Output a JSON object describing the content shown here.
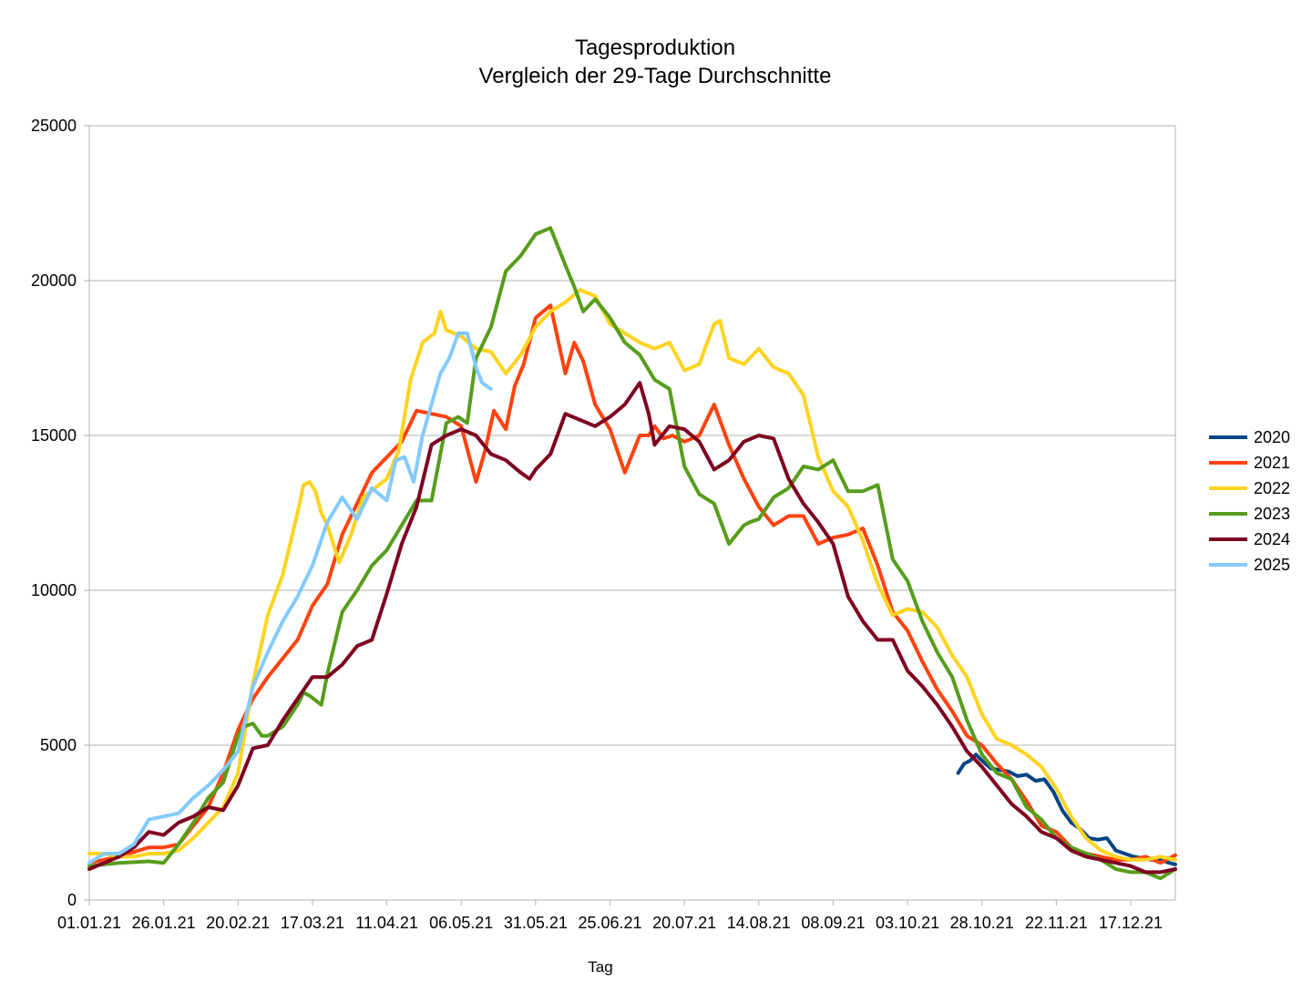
{
  "chart_data": {
    "type": "line",
    "title": "Tagesproduktion",
    "subtitle": "Vergleich der 29-Tage Durchschnitte",
    "xlabel": "Tag",
    "ylabel": "",
    "x_range_days": [
      0,
      365
    ],
    "ylim": [
      0,
      25000
    ],
    "yticks": [
      0,
      5000,
      10000,
      15000,
      20000,
      25000
    ],
    "xtick_labels": [
      "01.01.21",
      "26.01.21",
      "20.02.21",
      "17.03.21",
      "11.04.21",
      "06.05.21",
      "31.05.21",
      "25.06.21",
      "20.07.21",
      "14.08.21",
      "08.09.21",
      "03.10.21",
      "28.10.21",
      "22.11.21",
      "17.12.21"
    ],
    "xtick_days": [
      0,
      25,
      50,
      75,
      100,
      125,
      150,
      175,
      200,
      225,
      250,
      275,
      300,
      325,
      350
    ],
    "grid": "horizontal",
    "legend_position": "right",
    "series": [
      {
        "name": "2020",
        "color": "#004586",
        "x": [
          292,
          294,
          296,
          298,
          300,
          303,
          306,
          309,
          312,
          315,
          318,
          321,
          324,
          327,
          330,
          333,
          336,
          339,
          342,
          345,
          348,
          351,
          354,
          357,
          360,
          363,
          365
        ],
        "y": [
          4100,
          4400,
          4500,
          4700,
          4500,
          4250,
          4200,
          4150,
          4000,
          4050,
          3850,
          3900,
          3500,
          2900,
          2500,
          2300,
          2000,
          1950,
          2000,
          1600,
          1500,
          1400,
          1350,
          1300,
          1300,
          1200,
          1150
        ]
      },
      {
        "name": "2021",
        "color": "#ff420e",
        "x": [
          0,
          10,
          20,
          25,
          30,
          35,
          40,
          45,
          50,
          55,
          60,
          65,
          70,
          75,
          80,
          85,
          90,
          95,
          100,
          105,
          110,
          115,
          120,
          125,
          130,
          133,
          136,
          140,
          143,
          146,
          150,
          155,
          160,
          163,
          166,
          170,
          175,
          180,
          185,
          188,
          190,
          193,
          196,
          200,
          205,
          210,
          215,
          220,
          225,
          230,
          235,
          240,
          245,
          250,
          255,
          260,
          265,
          270,
          275,
          280,
          285,
          290,
          295,
          300,
          305,
          310,
          315,
          320,
          325,
          330,
          335,
          340,
          345,
          350,
          355,
          360,
          365
        ],
        "y": [
          1200,
          1400,
          1700,
          1700,
          1800,
          2400,
          3000,
          4100,
          5500,
          6500,
          7200,
          7800,
          8400,
          9500,
          10200,
          11800,
          12800,
          13800,
          14300,
          14800,
          15800,
          15700,
          15600,
          15300,
          13500,
          14500,
          15800,
          15200,
          16600,
          17300,
          18800,
          19200,
          17000,
          18000,
          17400,
          16000,
          15200,
          13800,
          15000,
          15000,
          15300,
          14900,
          15000,
          14800,
          15000,
          16000,
          14700,
          13600,
          12700,
          12100,
          12400,
          12400,
          11500,
          11700,
          11800,
          12000,
          10800,
          9300,
          8700,
          7700,
          6800,
          6100,
          5300,
          5000,
          4400,
          3900,
          3200,
          2400,
          2200,
          1700,
          1500,
          1400,
          1300,
          1300,
          1400,
          1200,
          1450
        ]
      },
      {
        "name": "2022",
        "color": "#ffd320",
        "x": [
          0,
          5,
          10,
          15,
          20,
          25,
          30,
          35,
          40,
          45,
          50,
          55,
          60,
          65,
          70,
          72,
          74,
          76,
          78,
          80,
          84,
          88,
          92,
          96,
          100,
          104,
          108,
          112,
          116,
          118,
          120,
          125,
          130,
          135,
          140,
          145,
          150,
          155,
          160,
          165,
          170,
          175,
          180,
          185,
          190,
          195,
          200,
          205,
          210,
          212,
          215,
          220,
          225,
          230,
          235,
          240,
          245,
          250,
          255,
          260,
          265,
          270,
          275,
          280,
          285,
          290,
          295,
          300,
          305,
          310,
          315,
          320,
          325,
          330,
          335,
          340,
          345,
          350,
          355,
          360,
          365
        ],
        "y": [
          1500,
          1500,
          1400,
          1400,
          1500,
          1500,
          1600,
          2000,
          2500,
          3000,
          4100,
          7000,
          9200,
          10500,
          12500,
          13400,
          13500,
          13200,
          12500,
          12100,
          10900,
          11800,
          13000,
          13300,
          13600,
          14500,
          16800,
          18000,
          18300,
          19000,
          18400,
          18200,
          17800,
          17700,
          17000,
          17600,
          18500,
          19000,
          19300,
          19700,
          19500,
          18600,
          18300,
          18000,
          17800,
          18000,
          17100,
          17300,
          18600,
          18700,
          17500,
          17300,
          17800,
          17200,
          17000,
          16300,
          14300,
          13200,
          12700,
          11600,
          10200,
          9200,
          9400,
          9300,
          8800,
          7900,
          7200,
          6000,
          5200,
          5000,
          4700,
          4300,
          3600,
          2700,
          2000,
          1600,
          1400,
          1300,
          1300,
          1400,
          1300
        ]
      },
      {
        "name": "2023",
        "color": "#579d1c",
        "x": [
          0,
          10,
          20,
          25,
          30,
          35,
          40,
          45,
          50,
          52,
          55,
          58,
          60,
          65,
          70,
          72,
          74,
          78,
          80,
          85,
          90,
          95,
          100,
          105,
          110,
          115,
          120,
          124,
          127,
          130,
          135,
          140,
          145,
          150,
          155,
          160,
          163,
          166,
          170,
          175,
          180,
          185,
          190,
          195,
          200,
          205,
          210,
          215,
          220,
          222,
          225,
          230,
          235,
          240,
          245,
          250,
          255,
          260,
          265,
          270,
          275,
          280,
          285,
          290,
          295,
          300,
          305,
          310,
          315,
          320,
          325,
          330,
          335,
          340,
          345,
          350,
          355,
          360,
          365
        ],
        "y": [
          1100,
          1200,
          1250,
          1200,
          1800,
          2500,
          3300,
          3800,
          5300,
          5600,
          5700,
          5300,
          5300,
          5600,
          6300,
          6700,
          6600,
          6300,
          7300,
          9300,
          10000,
          10800,
          11300,
          12100,
          12900,
          12900,
          15400,
          15600,
          15400,
          17500,
          18500,
          20300,
          20800,
          21500,
          21700,
          20500,
          19800,
          19000,
          19400,
          18800,
          18000,
          17600,
          16800,
          16500,
          14000,
          13100,
          12800,
          11500,
          12100,
          12200,
          12300,
          13000,
          13300,
          14000,
          13900,
          14200,
          13200,
          13200,
          13400,
          11000,
          10300,
          9000,
          8000,
          7200,
          5800,
          4700,
          4100,
          3900,
          3000,
          2600,
          2000,
          1700,
          1500,
          1300,
          1000,
          900,
          900,
          700,
          1000
        ]
      },
      {
        "name": "2024",
        "color": "#7e0021",
        "x": [
          0,
          5,
          10,
          15,
          20,
          25,
          30,
          35,
          40,
          45,
          50,
          55,
          60,
          65,
          70,
          75,
          80,
          85,
          90,
          95,
          100,
          105,
          110,
          115,
          120,
          125,
          130,
          135,
          140,
          145,
          148,
          150,
          155,
          160,
          165,
          170,
          175,
          180,
          185,
          188,
          190,
          195,
          200,
          205,
          210,
          215,
          220,
          225,
          230,
          235,
          240,
          245,
          250,
          255,
          260,
          265,
          270,
          275,
          280,
          285,
          290,
          295,
          300,
          305,
          310,
          315,
          320,
          325,
          330,
          335,
          340,
          345,
          350,
          355,
          360,
          365
        ],
        "y": [
          1000,
          1200,
          1400,
          1700,
          2200,
          2100,
          2500,
          2700,
          3000,
          2900,
          3700,
          4900,
          5000,
          5800,
          6500,
          7200,
          7200,
          7600,
          8200,
          8400,
          9900,
          11500,
          12700,
          14700,
          15000,
          15200,
          15000,
          14400,
          14200,
          13800,
          13600,
          13900,
          14400,
          15700,
          15500,
          15300,
          15600,
          16000,
          16700,
          15700,
          14700,
          15300,
          15200,
          14800,
          13900,
          14200,
          14800,
          15000,
          14900,
          13600,
          12800,
          12200,
          11500,
          9800,
          9000,
          8400,
          8400,
          7400,
          6900,
          6300,
          5600,
          4800,
          4300,
          3700,
          3100,
          2700,
          2200,
          2000,
          1600,
          1400,
          1300,
          1200,
          1100,
          900,
          900,
          1000
        ]
      },
      {
        "name": "2025",
        "color": "#83caff",
        "x": [
          0,
          5,
          10,
          15,
          20,
          25,
          30,
          35,
          40,
          45,
          50,
          55,
          60,
          65,
          70,
          75,
          80,
          85,
          90,
          95,
          100,
          103,
          106,
          109,
          112,
          115,
          118,
          121,
          124,
          127,
          130,
          132,
          135
        ],
        "y": [
          1200,
          1500,
          1500,
          1800,
          2600,
          2700,
          2800,
          3300,
          3700,
          4200,
          4800,
          6900,
          8000,
          9000,
          9800,
          10800,
          12200,
          13000,
          12300,
          13300,
          12900,
          14200,
          14300,
          13500,
          15000,
          16000,
          17000,
          17500,
          18300,
          18300,
          17200,
          16700,
          16500
        ]
      }
    ]
  }
}
